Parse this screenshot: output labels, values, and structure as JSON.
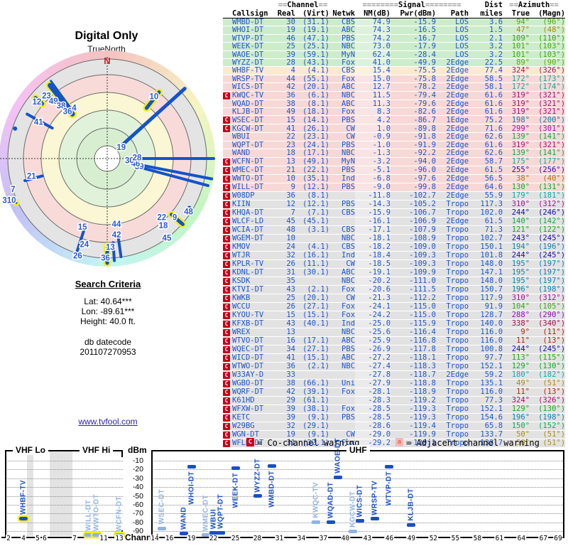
{
  "polar": {
    "title": "Digital Only",
    "orientation_label": "TrueNorth",
    "north_letter": "N",
    "rings": {
      "radii": [
        18,
        43,
        68,
        93,
        118,
        140
      ],
      "outer": 152,
      "band_colors": [
        "#ffffff",
        "#d7efd0",
        "#e0f3da",
        "#fbf6d3",
        "#f8dbd9",
        "#e4e4e4"
      ],
      "line_color": "#6a6a6a"
    },
    "line_color": "#1553c8",
    "highlight_color": "#f2ee17"
  },
  "criteria": {
    "heading": "Search Criteria",
    "lines": [
      "Lat: 40.64***",
      "Lon: -89.61***",
      "Height: 40.0 ft."
    ],
    "datecode_label": "db datecode",
    "datecode": "201107270953"
  },
  "link": "www.tvfool.com",
  "table": {
    "group_headers": {
      "channel": "==Channel==",
      "signal": "========Signal========",
      "dist": "Dist",
      "azimuth": "==Azimuth=="
    },
    "col_headers": [
      "Callsign",
      "Real",
      "(Virt)",
      "Netwk",
      "NM(dB)",
      "Pwr(dBm)",
      "Path",
      "miles",
      "True",
      "(Magn)"
    ],
    "rows": [
      [
        "WMBD-DT",
        "30",
        "(31.1)",
        "CBS",
        "74.9",
        "-15.9",
        "LOS",
        "3.6",
        94,
        96,
        0
      ],
      [
        "WHOI-DT",
        "19",
        "(19.1)",
        "ABC",
        "74.3",
        "-16.5",
        "LOS",
        "1.5",
        47,
        48,
        0
      ],
      [
        "WTVP-DT",
        "46",
        "(47.1)",
        "PBS",
        "74.2",
        "-16.7",
        "LOS",
        "2.1",
        109,
        110,
        0
      ],
      [
        "WEEK-DT",
        "25",
        "(25.1)",
        "NBC",
        "73.0",
        "-17.9",
        "LOS",
        "3.2",
        101,
        103,
        0
      ],
      [
        "WAOE-DT",
        "39",
        "(59.1)",
        "MyN",
        "62.4",
        "-28.4",
        "LOS",
        "3.2",
        101,
        103,
        0
      ],
      [
        "WYZZ-DT",
        "28",
        "(43.1)",
        "Fox",
        "41.0",
        "-49.9",
        "2Edge",
        "22.5",
        89,
        90,
        0
      ],
      [
        "WHBF-TV",
        "4",
        "(4.1)",
        "CBS",
        "15.4",
        "-75.5",
        "2Edge",
        "77.4",
        324,
        326,
        0
      ],
      [
        "WRSP-TV",
        "44",
        "(55.1)",
        "Fox",
        "15.0",
        "-75.8",
        "2Edge",
        "58.5",
        172,
        173,
        0
      ],
      [
        "WICS-DT",
        "42",
        "(20.1)",
        "ABC",
        "12.7",
        "-78.2",
        "2Edge",
        "58.1",
        172,
        174,
        0
      ],
      [
        "KWQC-TV",
        "36",
        "(6.1)",
        "NBC",
        "11.5",
        "-79.4",
        "2Edge",
        "61.6",
        319,
        321,
        1
      ],
      [
        "WQAD-DT",
        "38",
        "(8.1)",
        "ABC",
        "11.3",
        "-79.6",
        "2Edge",
        "61.6",
        319,
        321,
        0
      ],
      [
        "KLJB-DT",
        "49",
        "(18.1)",
        "Fox",
        "8.3",
        "-82.6",
        "2Edge",
        "61.6",
        319,
        321,
        0
      ],
      [
        "WSEC-DT",
        "15",
        "(14.1)",
        "PBS",
        "4.2",
        "-86.7",
        "1Edge",
        "75.2",
        198,
        200,
        1
      ],
      [
        "KGCW-DT",
        "41",
        "(26.1)",
        "CW",
        "1.0",
        "-89.8",
        "2Edge",
        "71.6",
        299,
        301,
        1
      ],
      [
        "WBUI",
        "22",
        "(23.1)",
        "CW",
        "-0.9",
        "-91.8",
        "2Edge",
        "62.6",
        139,
        141,
        0
      ],
      [
        "WQPT-DT",
        "23",
        "(24.1)",
        "PBS",
        "-1.0",
        "-91.9",
        "2Edge",
        "61.6",
        319,
        321,
        0
      ],
      [
        "WAND",
        "18",
        "(17.1)",
        "NBC",
        "-1.3",
        "-92.2",
        "2Edge",
        "62.6",
        139,
        141,
        0
      ],
      [
        "WCFN-DT",
        "13",
        "(49.1)",
        "MyN",
        "-3.2",
        "-94.0",
        "2Edge",
        "58.7",
        175,
        177,
        1
      ],
      [
        "WMEC-DT",
        "21",
        "(22.1)",
        "PBS",
        "-5.1",
        "-96.0",
        "2Edge",
        "61.5",
        255,
        256,
        1
      ],
      [
        "WWTO-DT",
        "10",
        "(35.1)",
        "Ind",
        "-6.8",
        "-97.6",
        "2Edge",
        "56.5",
        38,
        40,
        1
      ],
      [
        "WILL-DT",
        "9",
        "(12.1)",
        "PBS",
        "-9.0",
        "-99.8",
        "2Edge",
        "64.6",
        130,
        131,
        1
      ],
      [
        "W08DP",
        "36",
        "(8.1)",
        "",
        "-11.8",
        "-102.7",
        "2Edge",
        "55.9",
        179,
        181,
        1
      ],
      [
        "KIIN",
        "12",
        "(12.1)",
        "PBS",
        "-14.3",
        "-105.2",
        "Tropo",
        "117.3",
        310,
        312,
        1
      ],
      [
        "KHQA-DT",
        "7",
        "(7.1)",
        "CBS",
        "-15.9",
        "-106.7",
        "Tropo",
        "102.0",
        244,
        246,
        1
      ],
      [
        "WLCF-LD",
        "45",
        "(45.1)",
        "",
        "-16.1",
        "-106.9",
        "2Edge",
        "61.5",
        140,
        142,
        1
      ],
      [
        "WCIA-DT",
        "48",
        "(3.1)",
        "CBS",
        "-17.1",
        "-107.9",
        "Tropo",
        "71.3",
        121,
        122,
        1
      ],
      [
        "WGEM-DT",
        "10",
        "",
        "NBC",
        "-18.1",
        "-108.9",
        "Tropo",
        "102.7",
        243,
        245,
        1
      ],
      [
        "KMOV",
        "24",
        "(4.1)",
        "CBS",
        "-18.2",
        "-109.0",
        "Tropo",
        "150.1",
        194,
        196,
        1
      ],
      [
        "WTJR",
        "32",
        "(16.1)",
        "Ind",
        "-18.4",
        "-109.3",
        "Tropo",
        "101.8",
        244,
        245,
        1
      ],
      [
        "KPLR-TV",
        "26",
        "(11.1)",
        "CW",
        "-18.5",
        "-109.3",
        "Tropo",
        "148.0",
        195,
        197,
        1
      ],
      [
        "KDNL-DT",
        "31",
        "(30.1)",
        "ABC",
        "-19.1",
        "-109.9",
        "Tropo",
        "147.1",
        195,
        197,
        1
      ],
      [
        "KSDK",
        "35",
        "",
        "NBC",
        "-20.2",
        "-111.0",
        "Tropo",
        "148.0",
        195,
        197,
        1
      ],
      [
        "KTVI-DT",
        "43",
        "(2.1)",
        "Fox",
        "-20.6",
        "-111.5",
        "Tropo",
        "150.7",
        196,
        198,
        1
      ],
      [
        "KWKB",
        "25",
        "(20.1)",
        "CW",
        "-21.3",
        "-112.2",
        "Tropo",
        "117.9",
        310,
        312,
        1
      ],
      [
        "WCCU",
        "26",
        "(27.1)",
        "Fox",
        "-24.1",
        "-115.0",
        "Tropo",
        "91.9",
        104,
        105,
        1
      ],
      [
        "KYOU-TV",
        "15",
        "(15.1)",
        "Fox",
        "-24.2",
        "-115.0",
        "Tropo",
        "128.7",
        288,
        290,
        1
      ],
      [
        "KFXB-DT",
        "43",
        "(40.1)",
        "Ind",
        "-25.0",
        "-115.9",
        "Tropo",
        "140.0",
        338,
        340,
        1
      ],
      [
        "WREX",
        "13",
        "",
        "NBC",
        "-25.6",
        "-116.4",
        "Tropo",
        "116.0",
        9,
        11,
        1
      ],
      [
        "WTVO-DT",
        "16",
        "(17.1)",
        "ABC",
        "-25.9",
        "-116.8",
        "Tropo",
        "116.0",
        11,
        13,
        1
      ],
      [
        "WQEC-DT",
        "34",
        "(27.1)",
        "PBS",
        "-26.9",
        "-117.8",
        "Tropo",
        "100.8",
        244,
        245,
        1
      ],
      [
        "WICD-DT",
        "41",
        "(15.1)",
        "ABC",
        "-27.2",
        "-118.1",
        "Tropo",
        "97.7",
        113,
        115,
        1
      ],
      [
        "WTWO-DT",
        "36",
        "(2.1)",
        "NBC",
        "-27.4",
        "-118.3",
        "Tropo",
        "152.1",
        129,
        130,
        1
      ],
      [
        "W33AY-D",
        "33",
        "",
        "",
        "-27.8",
        "-118.7",
        "2Edge",
        "59.2",
        180,
        182,
        1
      ],
      [
        "WGBO-DT",
        "38",
        "(66.1)",
        "Uni",
        "-27.9",
        "-118.8",
        "Tropo",
        "135.1",
        49,
        51,
        1
      ],
      [
        "WQRF-DT",
        "42",
        "(39.1)",
        "Fox",
        "-28.1",
        "-118.9",
        "Tropo",
        "116.0",
        11,
        13,
        1
      ],
      [
        "K61HD",
        "29",
        "(61.1)",
        "",
        "-28.3",
        "-119.2",
        "Tropo",
        "77.3",
        324,
        326,
        1
      ],
      [
        "WFXW-DT",
        "39",
        "(38.1)",
        "Fox",
        "-28.5",
        "-119.3",
        "Tropo",
        "152.1",
        129,
        130,
        1
      ],
      [
        "KETC",
        "39",
        "(9.1)",
        "PBS",
        "-28.5",
        "-119.3",
        "Tropo",
        "154.6",
        196,
        198,
        1
      ],
      [
        "W29BG",
        "32",
        "(29.1)",
        "",
        "-28.6",
        "-119.4",
        "Tropo",
        "65.8",
        150,
        152,
        1
      ],
      [
        "WGN-DT",
        "19",
        "(9.1)",
        "CW",
        "-29.0",
        "-119.9",
        "Tropo",
        "133.7",
        50,
        51,
        1
      ],
      [
        "WFLD-DT",
        "31",
        "(32.1)",
        "Fox",
        "-29.2",
        "-120.1",
        "Tropo",
        "133.7",
        50,
        51,
        1
      ]
    ]
  },
  "legend": {
    "co_symbol": "C",
    "co_text": "= Co-channel warning",
    "adj_symbol": "a",
    "adj_text": "= Adjacent channel warning",
    "co_color": "#c90016",
    "adj_color": "#f6b8b8"
  },
  "spectrum": {
    "ylabel": "dBm",
    "xlabel": "Channel",
    "yticks": [
      "-10",
      "-20",
      "-30",
      "-40",
      "-50",
      "-60",
      "-70",
      "-80",
      "-90"
    ],
    "vhf_lo_label": "VHF Lo",
    "vhf_hi_label": "VHF Hi",
    "uhf_label": "UHF",
    "vhf_ticks": [
      "2",
      "4",
      "5",
      "6",
      "7",
      "11",
      "13"
    ],
    "uhf_ticks": [
      "14",
      "16",
      "19",
      "22",
      "25",
      "28",
      "31",
      "34",
      "37",
      "40",
      "43",
      "46",
      "49",
      "52",
      "55",
      "58",
      "61",
      "64",
      "67",
      "69"
    ]
  },
  "chart_data": [
    {
      "type": "radar",
      "title": "Digital Only",
      "orientation": "TrueNorth",
      "note": "radial zones green/yellow/pink/gray = signal strength, outer pastel ring hue = compass bearing",
      "labels": [
        {
          "t": "23",
          "az": 316,
          "r": 0.82
        },
        {
          "t": "49",
          "az": 317,
          "r": 0.74
        },
        {
          "t": "38",
          "az": 319,
          "r": 0.66
        },
        {
          "t": "36",
          "az": 320,
          "r": 0.58
        },
        {
          "t": "4",
          "az": 327,
          "r": 0.57
        },
        {
          "t": "12",
          "az": 309,
          "r": 0.85
        },
        {
          "t": "41",
          "az": 298,
          "r": 0.73
        },
        {
          "t": "310",
          "az": 247,
          "r": 1.0
        },
        {
          "t": "7",
          "az": 252,
          "r": 0.93
        },
        {
          "t": "21",
          "az": 257,
          "r": 0.73
        },
        {
          "t": "26",
          "az": 197,
          "r": 0.95
        },
        {
          "t": "24",
          "az": 195,
          "r": 0.83
        },
        {
          "t": "15",
          "az": 200,
          "r": 0.68
        },
        {
          "t": "36",
          "az": 181,
          "r": 0.93
        },
        {
          "t": "13",
          "az": 178,
          "r": 0.83
        },
        {
          "t": "42",
          "az": 173,
          "r": 0.72
        },
        {
          "t": "44",
          "az": 172,
          "r": 0.62
        },
        {
          "t": "45",
          "az": 143,
          "r": 0.93
        },
        {
          "t": "18",
          "az": 140,
          "r": 0.82
        },
        {
          "t": "22",
          "az": 137,
          "r": 0.75
        },
        {
          "t": "9",
          "az": 131,
          "r": 0.84
        },
        {
          "t": "48",
          "az": 123,
          "r": 0.91
        },
        {
          "t": "39",
          "az": 104,
          "r": 0.31
        },
        {
          "t": "46",
          "az": 100,
          "r": 0.27
        },
        {
          "t": "30",
          "az": 95,
          "r": 0.21
        },
        {
          "t": "28",
          "az": 88,
          "r": 0.28
        },
        {
          "t": "19",
          "az": 51,
          "r": 0.17
        },
        {
          "t": "10",
          "az": 37,
          "r": 0.73
        }
      ],
      "lines": [
        {
          "az": 38,
          "r1": 0.6,
          "r2": 0.79,
          "w": 5,
          "hl": 1
        },
        {
          "az": 48,
          "r1": 0.14,
          "r2": 0.98,
          "w": 5,
          "hl": 0
        },
        {
          "az": 90,
          "r1": 0.28,
          "r2": 1.0,
          "w": 4,
          "hl": 0
        },
        {
          "az": 101,
          "r1": 0.3,
          "r2": 1.0,
          "w": 4,
          "hl": 0
        },
        {
          "az": 105,
          "r1": 0.32,
          "r2": 0.98,
          "w": 4,
          "hl": 0
        },
        {
          "az": 131,
          "r1": 0.8,
          "r2": 0.94,
          "w": 5,
          "hl": 1
        },
        {
          "az": 172,
          "r1": 0.73,
          "r2": 0.93,
          "w": 4,
          "hl": 0
        },
        {
          "az": 176,
          "r1": 0.79,
          "r2": 0.96,
          "w": 4,
          "hl": 0
        },
        {
          "az": 180,
          "r1": 0.82,
          "r2": 0.98,
          "w": 5,
          "hl": 1
        },
        {
          "az": 198,
          "r1": 0.65,
          "r2": 0.93,
          "w": 4,
          "hl": 0
        },
        {
          "az": 255,
          "r1": 0.63,
          "r2": 0.8,
          "w": 4,
          "hl": 0
        },
        {
          "az": 299,
          "r1": 0.59,
          "r2": 0.86,
          "w": 4,
          "hl": 0
        },
        {
          "az": 310,
          "r1": 0.8,
          "r2": 0.88,
          "w": 6,
          "hl": 1
        },
        {
          "az": 322,
          "r1": 0.53,
          "r2": 0.87,
          "w": 7,
          "hl": 1
        },
        {
          "az": 324,
          "r1": 0.56,
          "r2": 0.9,
          "w": 3,
          "hl": 0
        }
      ],
      "dots": [
        {
          "az": 121,
          "r": 0.9,
          "hl": 0
        },
        {
          "az": 140,
          "r": 0.79,
          "hl": 0
        },
        {
          "az": 196,
          "r": 0.83,
          "hl": 0
        },
        {
          "az": 244,
          "r": 0.95,
          "hl": 1
        },
        {
          "az": 288,
          "r": 0.91,
          "hl": 0
        },
        {
          "az": 316,
          "r": 0.8,
          "hl": 0
        }
      ]
    },
    {
      "type": "scatter",
      "title": "VHF Lo / VHF Hi",
      "xlabel": "Channel",
      "ylabel": "dBm",
      "ylim": [
        -96,
        0
      ],
      "stations": [
        {
          "callsign": "WHBF-TV",
          "ch": 4,
          "dbm": -75.5,
          "co": 0,
          "vhf_hl": 1
        },
        {
          "callsign": "WILL-DT",
          "ch": 9,
          "dbm": -99.8,
          "co": 1,
          "vhf_hl": 1
        },
        {
          "callsign": "WWTO-DT",
          "ch": 10,
          "dbm": -97.6,
          "co": 1,
          "vhf_hl": 1
        },
        {
          "callsign": "WCFN-DT",
          "ch": 13,
          "dbm": -94.0,
          "co": 1,
          "vhf_hl": 1
        }
      ]
    },
    {
      "type": "scatter",
      "title": "UHF",
      "xlabel": "Channel",
      "ylabel": "dBm",
      "ylim": [
        -96,
        0
      ],
      "stations": [
        {
          "callsign": "WSEC-DT",
          "ch": 15,
          "dbm": -86.7,
          "co": 1,
          "vhf_hl": 0
        },
        {
          "callsign": "WAND",
          "ch": 18,
          "dbm": -92.2,
          "co": 0,
          "vhf_hl": 0
        },
        {
          "callsign": "WHOI-DT",
          "ch": 19,
          "dbm": -16.5,
          "co": 0,
          "vhf_hl": 0
        },
        {
          "callsign": "WMEC-DT",
          "ch": 21,
          "dbm": -96.0,
          "co": 1,
          "vhf_hl": 0
        },
        {
          "callsign": "WBUI",
          "ch": 22,
          "dbm": -91.8,
          "co": 0,
          "vhf_hl": 0
        },
        {
          "callsign": "WQPT-DT",
          "ch": 23,
          "dbm": -91.9,
          "co": 0,
          "vhf_hl": 0
        },
        {
          "callsign": "WEEK-DT",
          "ch": 25,
          "dbm": -17.9,
          "co": 0,
          "vhf_hl": 0
        },
        {
          "callsign": "WYZZ-DT",
          "ch": 28,
          "dbm": -49.9,
          "co": 0,
          "vhf_hl": 0
        },
        {
          "callsign": "WMBD-DT",
          "ch": 30,
          "dbm": -15.9,
          "co": 0,
          "vhf_hl": 0
        },
        {
          "callsign": "KWQC-TV",
          "ch": 36,
          "dbm": -79.4,
          "co": 1,
          "vhf_hl": 0
        },
        {
          "callsign": "WQAD-DT",
          "ch": 38,
          "dbm": -79.6,
          "co": 0,
          "vhf_hl": 0
        },
        {
          "callsign": "WAOE-DT",
          "ch": 39,
          "dbm": -28.4,
          "co": 0,
          "vhf_hl": 0
        },
        {
          "callsign": "KGCW-DT",
          "ch": 41,
          "dbm": -89.8,
          "co": 1,
          "vhf_hl": 0
        },
        {
          "callsign": "WICS-DT",
          "ch": 42,
          "dbm": -78.2,
          "co": 0,
          "vhf_hl": 0
        },
        {
          "callsign": "WRSP-TV",
          "ch": 44,
          "dbm": -75.8,
          "co": 0,
          "vhf_hl": 0
        },
        {
          "callsign": "WTVP-DT",
          "ch": 46,
          "dbm": -16.7,
          "co": 0,
          "vhf_hl": 0
        },
        {
          "callsign": "KLJB-DT",
          "ch": 49,
          "dbm": -82.6,
          "co": 0,
          "vhf_hl": 0
        }
      ]
    }
  ]
}
